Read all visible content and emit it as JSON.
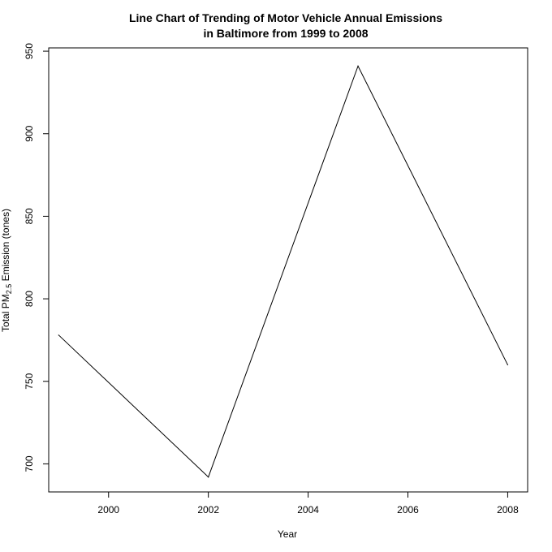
{
  "chart_data": {
    "type": "line",
    "title_line1": "Line Chart of Trending of Motor Vehicle Annual Emissions",
    "title_line2": "in Baltimore from 1999 to 2008",
    "xlabel": "Year",
    "ylabel_prefix": "Total PM",
    "ylabel_subscript": "2.5",
    "ylabel_suffix": " Emission (tones)",
    "x": [
      1999,
      2002,
      2005,
      2008
    ],
    "series": [
      {
        "values": [
          778,
          692,
          941,
          760
        ]
      }
    ],
    "xlim": [
      1998.8,
      2008.4
    ],
    "ylim": [
      683,
      952
    ],
    "xticks": [
      2000,
      2002,
      2004,
      2006,
      2008
    ],
    "yticks": [
      700,
      750,
      800,
      850,
      900,
      950
    ],
    "grid": false,
    "line_color": "#000000"
  }
}
